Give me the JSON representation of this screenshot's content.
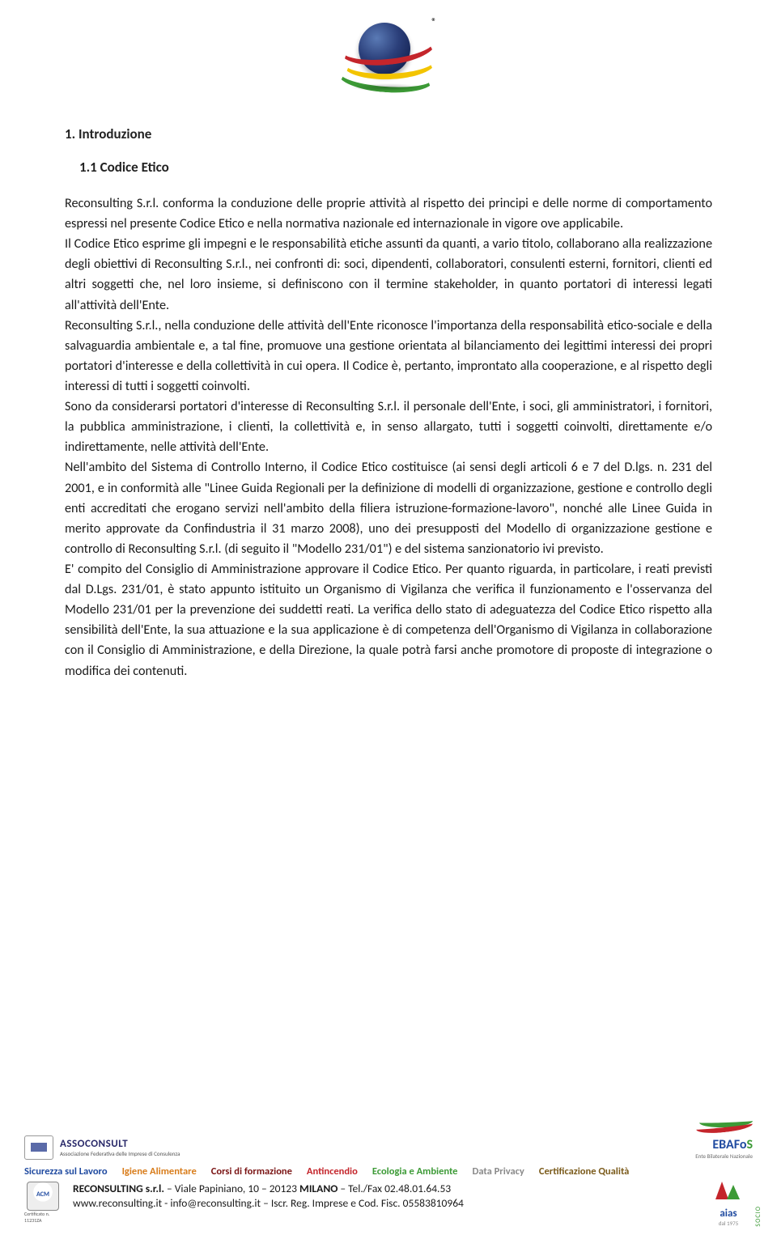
{
  "logo": {
    "registered": "®"
  },
  "section_number": "1. Introduzione",
  "subsection_number": "1.1 Codice Etico",
  "paragraphs": [
    "Reconsulting S.r.l. conforma la conduzione delle proprie attività al rispetto dei principi e delle norme di comportamento espressi nel presente Codice Etico e nella normativa nazionale ed internazionale in vigore ove applicabile.",
    "Il Codice Etico esprime gli impegni e le responsabilità etiche assunti da quanti, a vario titolo, collaborano alla realizzazione degli obiettivi di Reconsulting S.r.l., nei confronti di: soci, dipendenti, collaboratori, consulenti esterni, fornitori, clienti ed altri soggetti che, nel loro insieme, si definiscono con il termine stakeholder, in quanto portatori di interessi legati all'attività dell'Ente.",
    "Reconsulting S.r.l., nella conduzione delle attività dell'Ente riconosce l'importanza della responsabilità etico-sociale e della salvaguardia ambientale e, a tal fine, promuove una gestione orientata al bilanciamento dei legittimi interessi dei propri portatori d'interesse e della collettività in cui opera. Il Codice è, pertanto, improntato alla cooperazione, e al rispetto degli interessi di tutti i soggetti coinvolti.",
    "Sono da considerarsi portatori d'interesse di Reconsulting S.r.l. il personale dell'Ente, i soci, gli amministratori, i fornitori, la pubblica amministrazione, i clienti, la collettività e, in senso allargato, tutti i soggetti coinvolti, direttamente e/o indirettamente, nelle attività dell'Ente.",
    "Nell'ambito del Sistema di Controllo Interno, il Codice Etico costituisce (ai sensi degli articoli 6 e 7 del D.lgs. n. 231 del 2001, e in conformità alle \"Linee Guida Regionali per la definizione di modelli di organizzazione, gestione e controllo degli enti accreditati che erogano servizi nell'ambito della filiera istruzione-formazione-lavoro\", nonché alle Linee Guida in merito approvate da Confindustria il 31 marzo 2008), uno dei presupposti del Modello di organizzazione gestione e controllo di Reconsulting S.r.l. (di seguito il \"Modello 231/01\") e del sistema sanzionatorio ivi previsto.",
    "E' compito del Consiglio di Amministrazione approvare il Codice Etico. Per quanto riguarda, in particolare, i reati previsti dal D.Lgs. 231/01, è stato appunto istituito un Organismo di Vigilanza che verifica il funzionamento e l'osservanza del Modello 231/01 per la prevenzione dei suddetti reati. La verifica dello stato di adeguatezza del Codice Etico rispetto alla sensibilità dell'Ente, la sua attuazione e la sua applicazione è di competenza dell'Organismo di Vigilanza in collaborazione con il Consiglio di Amministrazione, e della Direzione, la quale potrà farsi anche promotore di proposte di integrazione o modifica dei contenuti."
  ],
  "footer": {
    "assoconsult": {
      "name": "ASSOCONSULT",
      "sub": "Associazione Federativa delle Imprese di Consulenza"
    },
    "ebafos": {
      "name_prefix": "EBAFo",
      "name_suffix": "S",
      "sub": "Ente Bilaterale Nazionale"
    },
    "strip": {
      "items": [
        {
          "text": "Sicurezza sul Lavoro",
          "cls": "c-blue"
        },
        {
          "text": "Igiene Alimentare",
          "cls": "c-orange"
        },
        {
          "text": "Corsi di formazione",
          "cls": "c-darkred"
        },
        {
          "text": "Antincendio",
          "cls": "c-red"
        },
        {
          "text": "Ecologia e Ambiente",
          "cls": "c-green"
        },
        {
          "text": "Data Privacy",
          "cls": "c-grey"
        },
        {
          "text": "Certificazione Qualità",
          "cls": "c-brown"
        }
      ]
    },
    "cert_no": "Certificato n. 11231ZA",
    "company_line1_a": "RECONSULTING s.r.l.",
    "company_line1_b": " – Viale Papiniano, 10 – 20123 ",
    "company_line1_c": "MILANO",
    "company_line1_d": " – Tel./Fax 02.48.01.64.53",
    "company_line2": "www.reconsulting.it - info@reconsulting.it – Iscr. Reg. Imprese e Cod. Fisc. 05583810964",
    "aias": {
      "name": "aias",
      "side": "SOCIO",
      "sub": "dal 1975"
    }
  }
}
